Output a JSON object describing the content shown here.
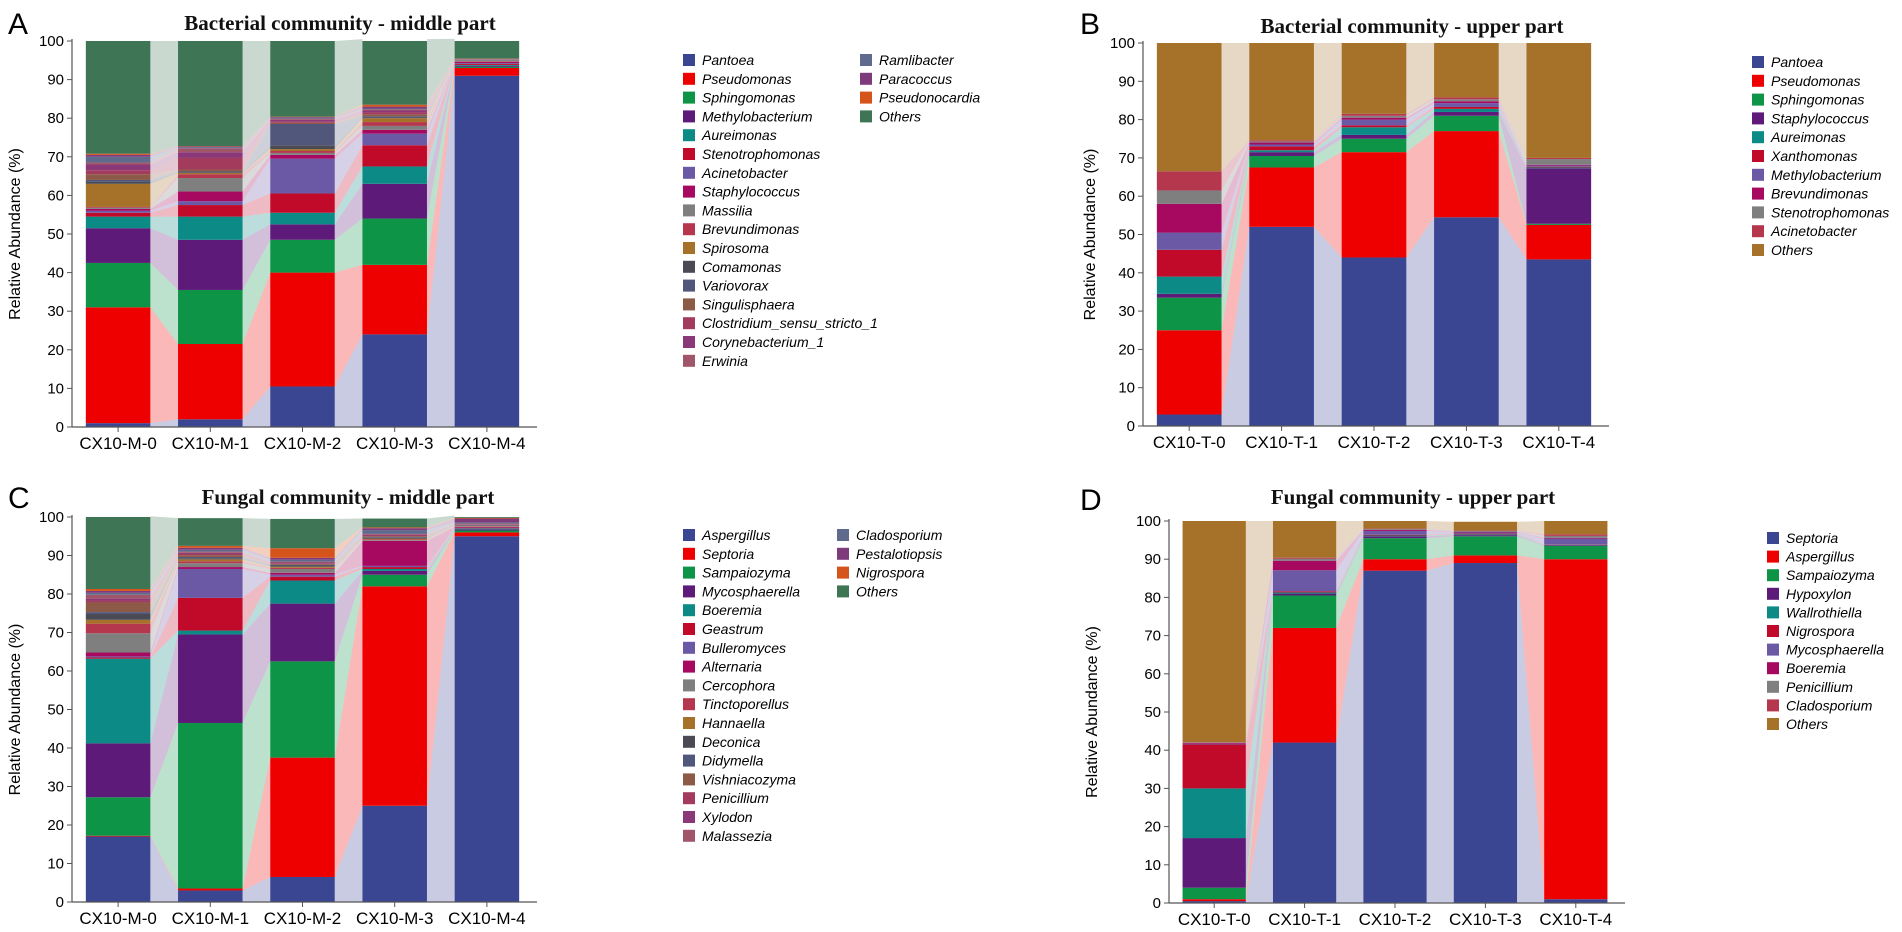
{
  "colors": {
    "pantoea": "#3b4693",
    "pseudomonas": "#ee0000",
    "sphingomonas": "#0e9447",
    "methylobacterium": "#5d1a78",
    "aureimonas": "#0b8a86",
    "stenotrophomonas": "#c10a2a",
    "acinetobacter": "#6c59a5",
    "staphylococcus": "#a6095f",
    "massilia": "#7f7f7f",
    "brevundimonas": "#b5374e",
    "spirosoma": "#a6722a",
    "comamonas": "#4a4a55",
    "variovorax": "#50577a",
    "singulisphaera": "#8d5a48",
    "clostridium": "#a33b5c",
    "corynebacterium": "#8b3878",
    "erwinia": "#a05668",
    "ramlibacter": "#5f6a8c",
    "paracoccus": "#7e3b7c",
    "pseudonocardia": "#d4541c",
    "others_green": "#3d7555",
    "others_brown": "#a6722a",
    "xanthomonas": "#c10a2a",
    "cladosporium": "#5f6a8c",
    "pestalotiopsis": "#7e3b7c",
    "nigrospora": "#d4541c",
    "geastrum": "#c10a2a",
    "alternaria": "#a6095f",
    "cercophora": "#7f7f7f",
    "tinctoporellus": "#b5374e",
    "hannaella": "#a6722a",
    "deconica": "#4a4a55",
    "didymella": "#50577a",
    "vishniacozyma": "#8d5a48",
    "penicillium_c": "#a33b5c",
    "xylodon": "#8b3878",
    "malassezia": "#a05668",
    "hypoxylon": "#5d1a78",
    "wallrothiella": "#0b8a86",
    "nigrospora_d": "#c10a2a",
    "boeremia_d": "#a6095f",
    "penicillium_d": "#7f7f7f",
    "cladosporium_d": "#b5374e"
  },
  "chart_data": [
    {
      "id": "A",
      "panel_label": "A",
      "type": "bar",
      "stacked": true,
      "title": "Bacterial community - middle part",
      "xlabel": "",
      "ylabel": "Relative Abundance (%)",
      "ylim": [
        0,
        100
      ],
      "yticks": [
        "0",
        "10",
        "20",
        "30",
        "40",
        "50",
        "60",
        "70",
        "80",
        "90",
        "100"
      ],
      "categories": [
        "CX10-M-0",
        "CX10-M-1",
        "CX10-M-2",
        "CX10-M-3",
        "CX10-M-4"
      ],
      "series": [
        {
          "name": "Pantoea",
          "color": "#3b4693",
          "values": [
            1,
            2,
            10.5,
            24,
            91
          ]
        },
        {
          "name": "Pseudomonas",
          "color": "#ee0000",
          "values": [
            30,
            19.5,
            29.5,
            18,
            2
          ]
        },
        {
          "name": "Sphingomonas",
          "color": "#0e9447",
          "values": [
            11.5,
            14,
            8.5,
            12,
            0.3
          ]
        },
        {
          "name": "Methylobacterium",
          "color": "#5d1a78",
          "values": [
            9,
            13,
            4,
            9,
            0.3
          ]
        },
        {
          "name": "Aureimonas",
          "color": "#0b8a86",
          "values": [
            3,
            6,
            3,
            4.5,
            0.2
          ]
        },
        {
          "name": "Stenotrophomonas",
          "color": "#c10a2a",
          "values": [
            1,
            3,
            5,
            5.5,
            0.3
          ]
        },
        {
          "name": "Acinetobacter",
          "color": "#6c59a5",
          "values": [
            0.5,
            1,
            9,
            3,
            0.2
          ]
        },
        {
          "name": "Staphylococcus",
          "color": "#a6095f",
          "values": [
            0.5,
            2.5,
            1,
            1,
            0.3
          ]
        },
        {
          "name": "Massilia",
          "color": "#7f7f7f",
          "values": [
            0.3,
            3.5,
            0.5,
            1,
            0.1
          ]
        },
        {
          "name": "Brevundimonas",
          "color": "#b5374e",
          "values": [
            0.2,
            1,
            0.5,
            1,
            0.1
          ]
        },
        {
          "name": "Spirosoma",
          "color": "#a6722a",
          "values": [
            6,
            0.3,
            0.5,
            1,
            0.1
          ]
        },
        {
          "name": "Comamonas",
          "color": "#4a4a55",
          "values": [
            0.5,
            0.2,
            1,
            0.2,
            0.1
          ]
        },
        {
          "name": "Variovorax",
          "color": "#50577a",
          "values": [
            0.5,
            0.2,
            5.5,
            0.3,
            0.1
          ]
        },
        {
          "name": "Singulisphaera",
          "color": "#8d5a48",
          "values": [
            1.5,
            0.5,
            0.3,
            0.5,
            0.05
          ]
        },
        {
          "name": "Clostridium_sensu_stricto_1",
          "color": "#a33b5c",
          "values": [
            1,
            3,
            0.3,
            0.5,
            0.05
          ]
        },
        {
          "name": "Corynebacterium_1",
          "color": "#8b3878",
          "values": [
            1.5,
            1.5,
            0.5,
            0.5,
            0.05
          ]
        },
        {
          "name": "Erwinia",
          "color": "#a05668",
          "values": [
            0.5,
            1,
            0.3,
            0.3,
            0.05
          ]
        },
        {
          "name": "Ramlibacter",
          "color": "#5f6a8c",
          "values": [
            1.5,
            0.3,
            0.2,
            0.2,
            0.05
          ]
        },
        {
          "name": "Paracoccus",
          "color": "#7e3b7c",
          "values": [
            0.5,
            0.2,
            0.2,
            0.5,
            0.05
          ]
        },
        {
          "name": "Pseudonocardia",
          "color": "#d4541c",
          "values": [
            0.3,
            0.1,
            0.1,
            0.5,
            0.05
          ]
        },
        {
          "name": "Others",
          "color": "#3d7555",
          "values": [
            29.2,
            27.2,
            19.6,
            17,
            5.1
          ]
        }
      ]
    },
    {
      "id": "B",
      "panel_label": "B",
      "type": "bar",
      "stacked": true,
      "title": "Bacterial community - upper part",
      "xlabel": "",
      "ylabel": "Relative Abundance (%)",
      "ylim": [
        0,
        100
      ],
      "yticks": [
        "0",
        "10",
        "20",
        "30",
        "40",
        "50",
        "60",
        "70",
        "80",
        "90",
        "100"
      ],
      "categories": [
        "CX10-T-0",
        "CX10-T-1",
        "CX10-T-2",
        "CX10-T-3",
        "CX10-T-4"
      ],
      "series": [
        {
          "name": "Pantoea",
          "color": "#3b4693",
          "values": [
            3,
            52,
            44,
            54.5,
            43.5
          ]
        },
        {
          "name": "Pseudomonas",
          "color": "#ee0000",
          "values": [
            22,
            15.5,
            27.5,
            22.5,
            9
          ]
        },
        {
          "name": "Sphingomonas",
          "color": "#0e9447",
          "values": [
            8.5,
            3,
            3.5,
            4,
            0.3
          ]
        },
        {
          "name": "Staphylococcus",
          "color": "#5d1a78",
          "values": [
            1,
            1,
            1,
            1,
            14.5
          ]
        },
        {
          "name": "Aureimonas",
          "color": "#0b8a86",
          "values": [
            4.5,
            0.5,
            2,
            0.8,
            0.2
          ]
        },
        {
          "name": "Xanthomonas",
          "color": "#c10a2a",
          "values": [
            7,
            1,
            0.5,
            0.5,
            0.2
          ]
        },
        {
          "name": "Methylobacterium",
          "color": "#6c59a5",
          "values": [
            4.5,
            0.5,
            1.5,
            1,
            0.3
          ]
        },
        {
          "name": "Brevundimonas",
          "color": "#a6095f",
          "values": [
            7.5,
            0.5,
            0.5,
            0.5,
            0.2
          ]
        },
        {
          "name": "Stenotrophomonas",
          "color": "#7f7f7f",
          "values": [
            3.5,
            0.3,
            0.5,
            0.5,
            1.5
          ]
        },
        {
          "name": "Acinetobacter",
          "color": "#b5374e",
          "values": [
            5,
            0.3,
            0.5,
            0.5,
            0.3
          ]
        },
        {
          "name": "Others",
          "color": "#a6722a",
          "values": [
            33.5,
            25.4,
            18.5,
            14.2,
            30
          ]
        }
      ]
    },
    {
      "id": "C",
      "panel_label": "C",
      "type": "bar",
      "stacked": true,
      "title": "Fungal community - middle part",
      "xlabel": "",
      "ylabel": "Relative Abundance (%)",
      "ylim": [
        0,
        100
      ],
      "yticks": [
        "0",
        "10",
        "20",
        "30",
        "40",
        "50",
        "60",
        "70",
        "80",
        "90",
        "100"
      ],
      "categories": [
        "CX10-M-0",
        "CX10-M-1",
        "CX10-M-2",
        "CX10-M-3",
        "CX10-M-4"
      ],
      "series": [
        {
          "name": "Aspergillus",
          "color": "#3b4693",
          "values": [
            17,
            3,
            6.5,
            25,
            95
          ]
        },
        {
          "name": "Septoria",
          "color": "#ee0000",
          "values": [
            0.2,
            0.5,
            31,
            57,
            1
          ]
        },
        {
          "name": "Sampaiozyma",
          "color": "#0e9447",
          "values": [
            10,
            43,
            25,
            3,
            0.5
          ]
        },
        {
          "name": "Mycosphaerella",
          "color": "#5d1a78",
          "values": [
            14,
            23,
            15,
            1,
            0.3
          ]
        },
        {
          "name": "Boeremia",
          "color": "#0b8a86",
          "values": [
            22,
            1,
            6,
            0.5,
            0.2
          ]
        },
        {
          "name": "Geastrum",
          "color": "#c10a2a",
          "values": [
            0.3,
            8.5,
            1,
            0.5,
            0.1
          ]
        },
        {
          "name": "Bulleromyces",
          "color": "#6c59a5",
          "values": [
            0.3,
            7.5,
            0.5,
            0.3,
            0.1
          ]
        },
        {
          "name": "Alternaria",
          "color": "#a6095f",
          "values": [
            1,
            0.5,
            0.5,
            6.5,
            0.2
          ]
        },
        {
          "name": "Cercophora",
          "color": "#7f7f7f",
          "values": [
            5,
            1,
            1,
            0.2,
            0.1
          ]
        },
        {
          "name": "Tinctoporellus",
          "color": "#b5374e",
          "values": [
            2.5,
            0.5,
            0.3,
            0.2,
            0.1
          ]
        },
        {
          "name": "Hannaella",
          "color": "#a6722a",
          "values": [
            1,
            0.5,
            0.3,
            0.2,
            0.1
          ]
        },
        {
          "name": "Deconica",
          "color": "#4a4a55",
          "values": [
            1.5,
            0.3,
            0.3,
            0.2,
            0.1
          ]
        },
        {
          "name": "Didymella",
          "color": "#50577a",
          "values": [
            0.5,
            0.3,
            0.2,
            0.2,
            0.1
          ]
        },
        {
          "name": "Vishniacozyma",
          "color": "#8d5a48",
          "values": [
            2.5,
            0.5,
            0.2,
            0.2,
            0.1
          ]
        },
        {
          "name": "Penicillium",
          "color": "#a33b5c",
          "values": [
            0.5,
            0.3,
            0.2,
            0.2,
            0.1
          ]
        },
        {
          "name": "Xylodon",
          "color": "#8b3878",
          "values": [
            0.5,
            0.3,
            0.2,
            0.2,
            0.1
          ]
        },
        {
          "name": "Malassezia",
          "color": "#a05668",
          "values": [
            1,
            0.3,
            0.2,
            0.2,
            0.1
          ]
        },
        {
          "name": "Cladosporium",
          "color": "#5f6a8c",
          "values": [
            0.5,
            0.5,
            0.5,
            1,
            0.3
          ]
        },
        {
          "name": "Pestalotiopsis",
          "color": "#7e3b7c",
          "values": [
            0.5,
            0.5,
            0.5,
            0.5,
            1
          ]
        },
        {
          "name": "Nigrospora",
          "color": "#d4541c",
          "values": [
            0.5,
            0.5,
            2.5,
            0.2,
            0.2
          ]
        },
        {
          "name": "Others",
          "color": "#3d7555",
          "values": [
            18.9,
            7.2,
            7.6,
            2.3,
            0.6
          ]
        }
      ]
    },
    {
      "id": "D",
      "panel_label": "D",
      "type": "bar",
      "stacked": true,
      "title": "Fungal community - upper part",
      "xlabel": "",
      "ylabel": "Relative Abundance (%)",
      "ylim": [
        0,
        100
      ],
      "yticks": [
        "0",
        "10",
        "20",
        "30",
        "40",
        "50",
        "60",
        "70",
        "80",
        "90",
        "100"
      ],
      "categories": [
        "CX10-T-0",
        "CX10-T-1",
        "CX10-T-2",
        "CX10-T-3",
        "CX10-T-4"
      ],
      "series": [
        {
          "name": "Septoria",
          "color": "#3b4693",
          "values": [
            0.5,
            42,
            87,
            89,
            1
          ]
        },
        {
          "name": "Aspergillus",
          "color": "#ee0000",
          "values": [
            0.5,
            30,
            3,
            2,
            89
          ]
        },
        {
          "name": "Sampaiozyma",
          "color": "#0e9447",
          "values": [
            3,
            8.5,
            5.5,
            5,
            3.5
          ]
        },
        {
          "name": "Hypoxylon",
          "color": "#5d1a78",
          "values": [
            13,
            0.5,
            0.5,
            0.3,
            0.2
          ]
        },
        {
          "name": "Wallrothiella",
          "color": "#0b8a86",
          "values": [
            13,
            0.3,
            0.2,
            0.2,
            0.1
          ]
        },
        {
          "name": "Nigrospora",
          "color": "#c10a2a",
          "values": [
            11.5,
            0.3,
            0.2,
            0.2,
            0.1
          ]
        },
        {
          "name": "Mycosphaerella",
          "color": "#6c59a5",
          "values": [
            0.2,
            5.5,
            1,
            0.3,
            1.5
          ]
        },
        {
          "name": "Boeremia",
          "color": "#a6095f",
          "values": [
            0.2,
            2.5,
            0.3,
            0.2,
            0.2
          ]
        },
        {
          "name": "Penicillium",
          "color": "#7f7f7f",
          "values": [
            0.1,
            0.5,
            0.2,
            0.2,
            0.5
          ]
        },
        {
          "name": "Cladosporium",
          "color": "#b5374e",
          "values": [
            0.1,
            0.3,
            0.1,
            0.1,
            0.4
          ]
        },
        {
          "name": "Others",
          "color": "#a6722a",
          "values": [
            57.9,
            9.6,
            2,
            2.3,
            3.5
          ]
        }
      ]
    }
  ]
}
